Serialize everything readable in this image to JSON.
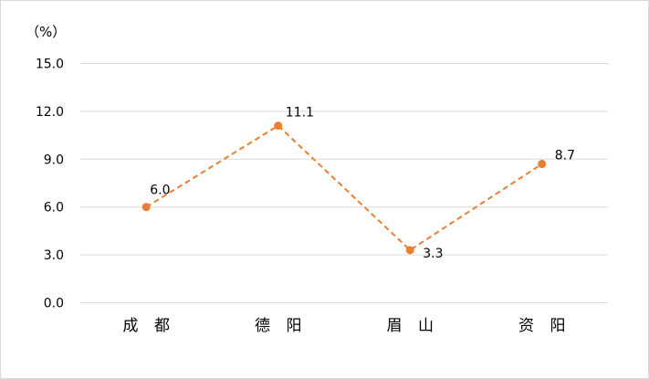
{
  "chart_data": {
    "type": "line",
    "unit_label": "（%）",
    "categories": [
      "成 都",
      "德 阳",
      "眉 山",
      "资 阳"
    ],
    "values": [
      6.0,
      11.1,
      3.3,
      8.7
    ],
    "value_labels": [
      "6.0",
      "11.1",
      "3.3",
      "8.7"
    ],
    "yticks": [
      "0.0",
      "3.0",
      "6.0",
      "9.0",
      "12.0",
      "15.0"
    ],
    "ylim": [
      0,
      15
    ],
    "grid": true,
    "line_style": "dashed",
    "color": "#ED7D31",
    "gridline_color": "#d9d9d9"
  }
}
